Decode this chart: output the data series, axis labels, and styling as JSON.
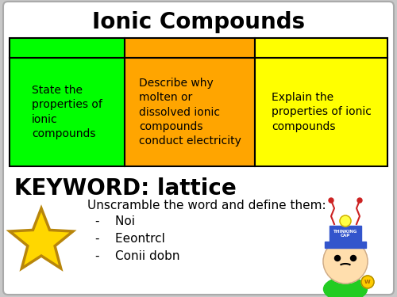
{
  "title": "Ionic Compounds",
  "outer_bg": "#c8c8c8",
  "inner_bg": "#ffffff",
  "table_colors": [
    "#00ff00",
    "#ffa500",
    "#ffff00"
  ],
  "table_texts": [
    "State the\nproperties of\nionic\ncompounds",
    "Describe why\nmolten or\ndissolved ionic\ncompounds\nconduct electricity",
    "Explain the\nproperties of ionic\ncompounds"
  ],
  "keyword_prefix": "KEYWORD: ",
  "keyword_suffix": "lattice",
  "unscramble_text": "Unscramble the word and define them:",
  "bullets": [
    "Noi",
    "Eeontrcl",
    "Conii dobn"
  ],
  "star_color": "#ffd700",
  "star_edge_color": "#b8860b",
  "title_fontsize": 20,
  "cell_fontsize": 10,
  "keyword_fontsize": 20,
  "body_fontsize": 11
}
